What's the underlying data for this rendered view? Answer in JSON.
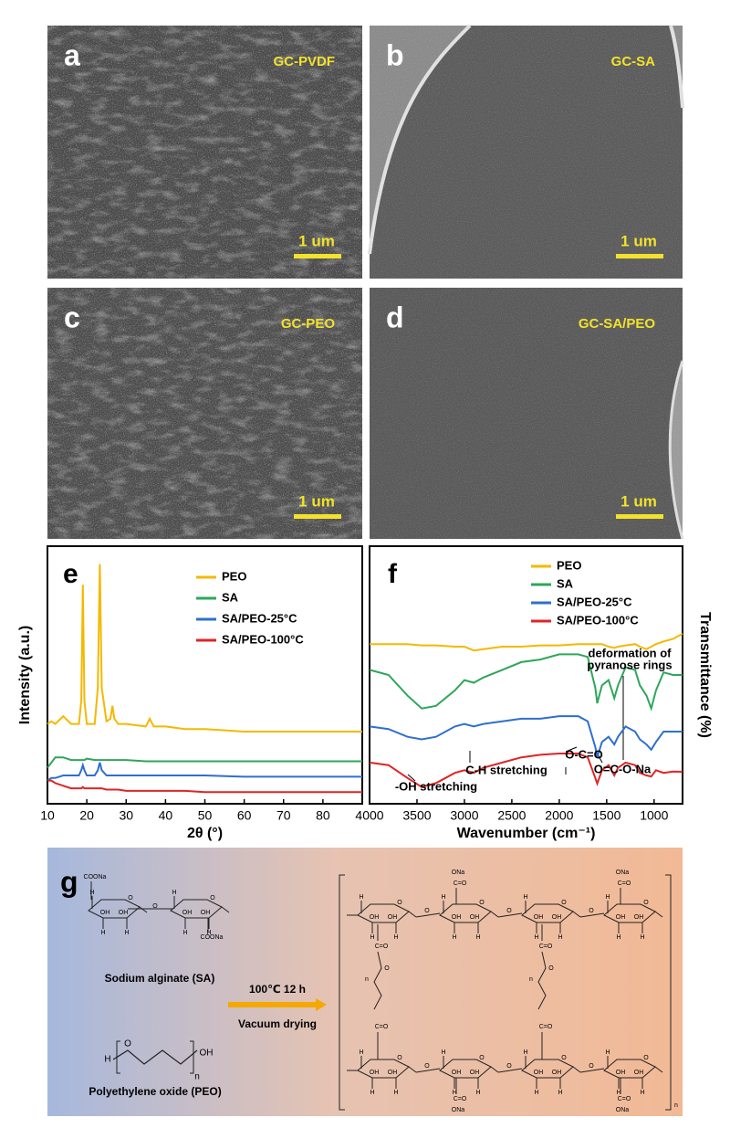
{
  "figure": {
    "sem_panels": [
      {
        "label": "a",
        "caption": "GC-PVDF",
        "scale": "1 um"
      },
      {
        "label": "b",
        "caption": "GC-SA",
        "scale": "1 um"
      },
      {
        "label": "c",
        "caption": "GC-PEO",
        "scale": "1 um"
      },
      {
        "label": "d",
        "caption": "GC-SA/PEO",
        "scale": "1 um"
      }
    ],
    "scheme": {
      "label": "g",
      "reactant_1": "Sodium alginate (SA)",
      "reactant_2": "Polyethylene oxide (PEO)",
      "condition": "100℃ 12 h",
      "process": "Vacuum drying",
      "atoms": {
        "coona": "COONa",
        "oh": "OH",
        "h": "H",
        "o": "O",
        "n": "n",
        "ona": "ONa",
        "co": "C=O"
      }
    }
  },
  "chart_data": [
    {
      "type": "line",
      "panel_label": "e",
      "xlabel": "2θ (°)",
      "ylabel": "Intensity (a.u.)",
      "xlim": [
        10,
        90
      ],
      "xticks": [
        10,
        20,
        30,
        40,
        50,
        60,
        70,
        80
      ],
      "ylim": [
        0,
        100
      ],
      "x": [
        10,
        11,
        12,
        14,
        16,
        18,
        18.6,
        19,
        19.4,
        20,
        22,
        22.8,
        23.3,
        23.8,
        25,
        26,
        26.5,
        27,
        28,
        30,
        35,
        36,
        37,
        40,
        45,
        50,
        60,
        70,
        80,
        90
      ],
      "series": [
        {
          "name": "PEO",
          "color": "#f5b800",
          "values": [
            31,
            32,
            31,
            34,
            31,
            31,
            40,
            85,
            40,
            31,
            31,
            45,
            93,
            45,
            32,
            33,
            38,
            33,
            31,
            31,
            30,
            33,
            30,
            30,
            29,
            29,
            28,
            28,
            28,
            28
          ]
        },
        {
          "name": "SA",
          "color": "#2ea65a",
          "values": [
            14,
            16,
            18,
            18,
            17,
            17,
            17,
            17,
            17,
            17.5,
            17,
            17,
            17,
            17,
            17,
            17,
            17,
            17,
            17,
            17,
            16.5,
            16.5,
            16.5,
            16.5,
            16.5,
            16.5,
            16.5,
            16.5,
            16.5,
            16.5
          ]
        },
        {
          "name": "SA/PEO-25°C",
          "color": "#2e6fd0",
          "values": [
            9,
            10,
            10,
            11,
            11,
            11,
            13,
            15,
            13,
            11,
            11,
            13,
            16,
            13,
            11,
            11,
            11,
            11,
            11,
            11,
            11,
            11,
            11,
            11,
            11,
            11,
            10.5,
            10.5,
            10.5,
            10.5
          ]
        },
        {
          "name": "SA/PEO-100°C",
          "color": "#e02424",
          "values": [
            9,
            9,
            8,
            7,
            6,
            6,
            6,
            6.5,
            6,
            6,
            6,
            6,
            6,
            6,
            5.5,
            5.5,
            5.5,
            5.5,
            5.5,
            5,
            5,
            5,
            5,
            5,
            5,
            4.5,
            4.5,
            4.5,
            4.5,
            4.5
          ]
        }
      ]
    },
    {
      "type": "line",
      "panel_label": "f",
      "xlabel": "Wavenumber (cm⁻¹)",
      "ylabel": "Transmittance (%)",
      "xlim": [
        4000,
        700
      ],
      "xticks": [
        4000,
        3500,
        3000,
        2500,
        2000,
        1500,
        1000
      ],
      "ylim": [
        0,
        100
      ],
      "x": [
        4000,
        3800,
        3600,
        3450,
        3300,
        3100,
        3000,
        2900,
        2800,
        2600,
        2400,
        2200,
        2000,
        1800,
        1700,
        1620,
        1600,
        1550,
        1480,
        1420,
        1380,
        1300,
        1200,
        1150,
        1080,
        1030,
        980,
        900,
        800,
        700
      ],
      "series": [
        {
          "name": "PEO",
          "color": "#f5b800",
          "values": [
            62,
            62,
            62,
            61.5,
            61.5,
            61,
            61,
            59.5,
            60,
            61,
            61,
            61.5,
            61.5,
            62,
            62,
            62,
            62,
            62,
            61,
            60.5,
            61,
            61.5,
            62,
            61,
            60,
            61,
            62,
            63,
            64,
            66
          ]
        },
        {
          "name": "SA",
          "color": "#2ea65a",
          "values": [
            52,
            50,
            42,
            37,
            38,
            44,
            48,
            47,
            49,
            52,
            55,
            56,
            58,
            58,
            57,
            45,
            39,
            46,
            48,
            41,
            46,
            53,
            52,
            46,
            42,
            37,
            44,
            51,
            50,
            50
          ]
        },
        {
          "name": "SA/PEO-25°C",
          "color": "#2e6fd0",
          "values": [
            30,
            29,
            26,
            25,
            26,
            30,
            31,
            30,
            31,
            32,
            33,
            33,
            34,
            34,
            32,
            22,
            18,
            24,
            26,
            23,
            26,
            30,
            28,
            25,
            23,
            21,
            24,
            28,
            28,
            28
          ]
        },
        {
          "name": "SA/PEO-100°C",
          "color": "#e02424",
          "values": [
            16,
            15,
            10,
            6.5,
            8,
            12,
            13,
            12,
            14,
            16,
            18,
            19,
            19.5,
            19.5,
            18,
            10,
            7.8,
            13,
            15,
            11,
            14,
            16,
            15,
            12,
            11,
            10.6,
            13,
            12,
            12.5,
            12.4
          ]
        }
      ],
      "annotations": [
        {
          "lines": [
            "deformation of",
            "pyranose rings"
          ]
        },
        {
          "lines": [
            "C-H stretching"
          ]
        },
        {
          "lines": [
            "-OH stretching"
          ]
        },
        {
          "lines": [
            "O-C=O"
          ]
        },
        {
          "lines": [
            "O=C-O-Na"
          ]
        }
      ]
    }
  ]
}
